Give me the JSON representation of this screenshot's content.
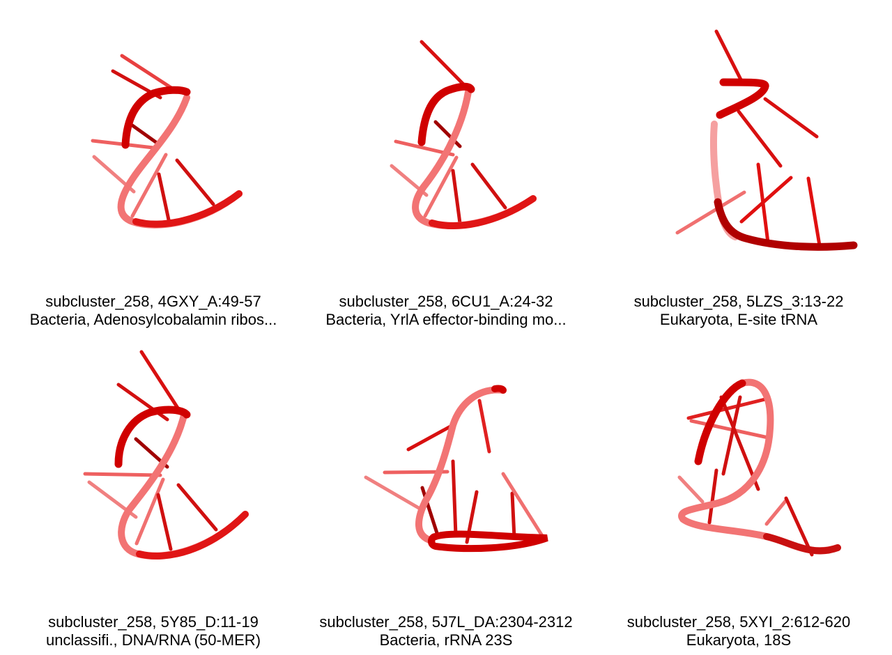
{
  "panels": [
    {
      "line1": "subcluster_258, 4GXY_A:49-57",
      "line2": "Bacteria, Adenosylcobalamin ribos..."
    },
    {
      "line1": "subcluster_258, 6CU1_A:24-32",
      "line2": "Bacteria, YrlA effector-binding mo..."
    },
    {
      "line1": "subcluster_258, 5LZS_3:13-22",
      "line2": "Eukaryota, E-site tRNA"
    },
    {
      "line1": "subcluster_258, 5Y85_D:11-19",
      "line2": "unclassifi., DNA/RNA (50-MER)"
    },
    {
      "line1": "subcluster_258, 5J7L_DA:2304-2312",
      "line2": "Bacteria, rRNA 23S"
    },
    {
      "line1": "subcluster_258, 5XYI_2:612-620",
      "line2": "Eukaryota, 18S"
    }
  ],
  "colors": {
    "backbone": "#e01515",
    "backbone_dark": "#a80000",
    "backbone_light": "#f06a6a"
  }
}
